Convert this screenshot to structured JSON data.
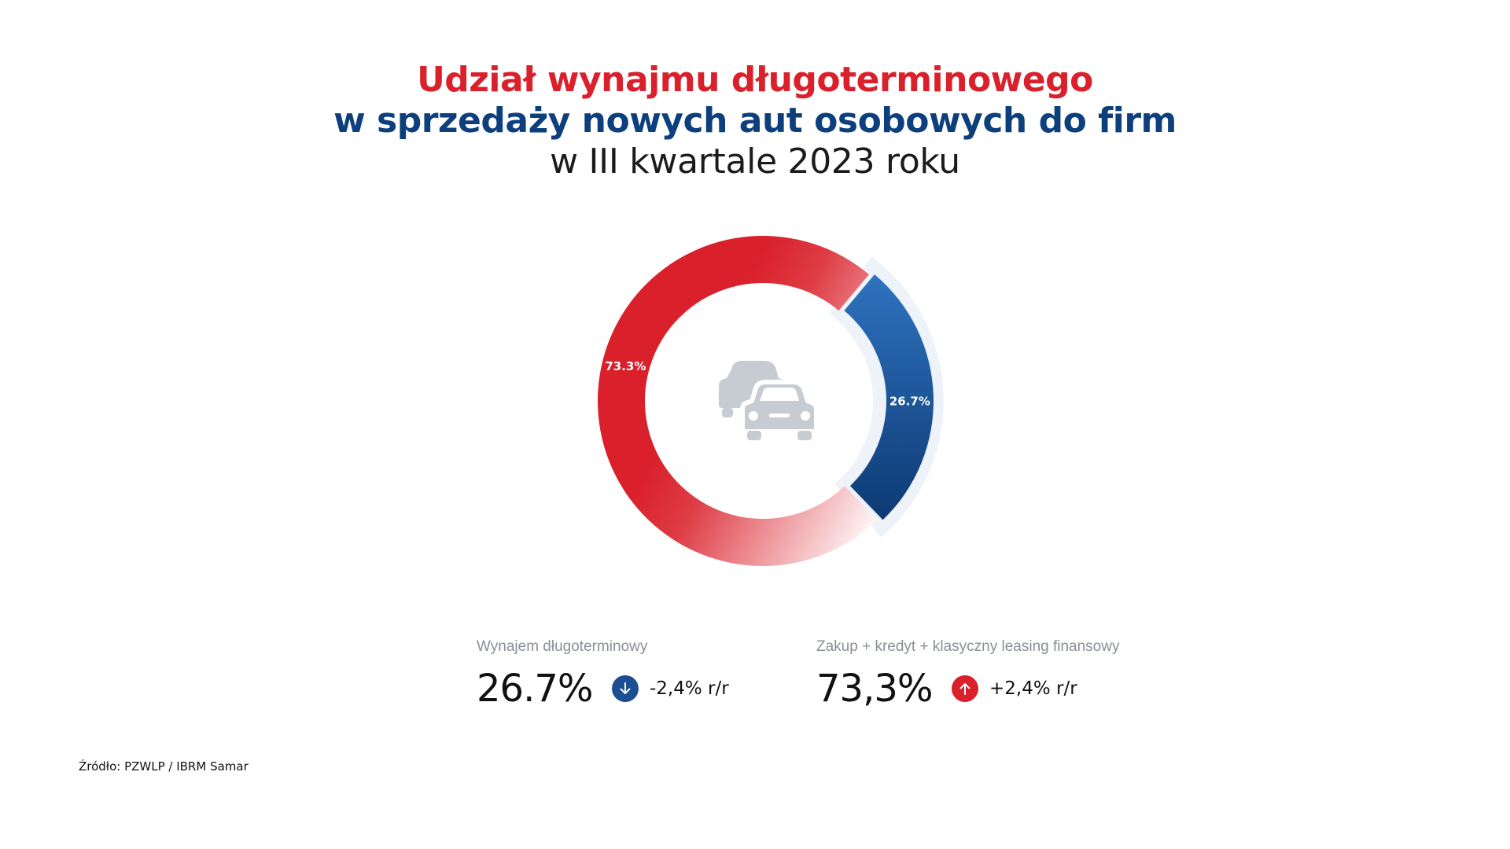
{
  "title": {
    "line1": "Udział wynajmu długoterminowego",
    "line2": "w sprzedaży nowych aut osobowych do firm",
    "line3": "w III kwartale 2023 roku"
  },
  "chart_data": {
    "type": "pie",
    "categories": [
      "Wynajem długoterminowy",
      "Zakup + kredyt + klasyczny leasing finansowy"
    ],
    "values": [
      26.7,
      73.3
    ],
    "data_labels": [
      "26.7%",
      "73.3%"
    ],
    "colors": [
      "#1f5aa6",
      "#d9202b"
    ],
    "center_icon": "cars-icon"
  },
  "stats": [
    {
      "label": "Wynajem długoterminowy",
      "value": "26.7%",
      "change": "-2,4% r/r",
      "direction": "down",
      "icon": "arrow-down-icon",
      "color": "#1c4e92"
    },
    {
      "label": "Zakup + kredyt + klasyczny leasing finansowy",
      "value": "73,3%",
      "change": "+2,4% r/r",
      "direction": "up",
      "icon": "arrow-up-icon",
      "color": "#d9202b"
    }
  ],
  "source": "Źródło: PZWLP / IBRM Samar"
}
